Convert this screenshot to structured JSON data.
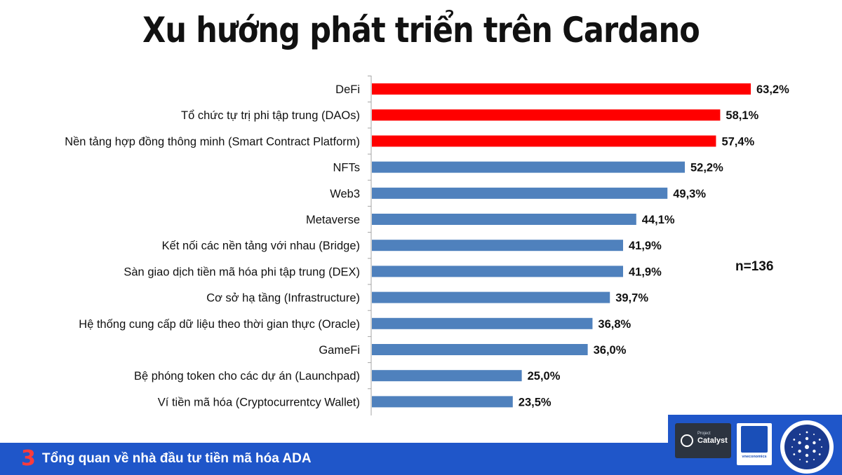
{
  "title": "Xu hướng phát triển trên Cardano",
  "n_label": "n=136",
  "footer": {
    "number": "3",
    "text": "Tổng quan về nhà đầu tư tiền mã hóa ADA"
  },
  "logos": {
    "catalyst_small": "Project",
    "catalyst": "Catalyst",
    "veconomics": "vneconomics"
  },
  "colors": {
    "highlight": "#ff0000",
    "default": "#4f81bd",
    "footer": "#1f56c9",
    "footer_number": "#ff3b3b"
  },
  "chart_data": {
    "type": "bar",
    "orientation": "horizontal",
    "title": "Xu hướng phát triển trên Cardano",
    "categories": [
      "DeFi",
      "Tổ chức tự trị phi tập trung (DAOs)",
      "Nền tảng hợp đồng thông minh (Smart Contract Platform)",
      "NFTs",
      "Web3",
      "Metaverse",
      "Kết nối các nền tảng với nhau (Bridge)",
      "Sàn giao dịch tiền mã hóa phi tập trung (DEX)",
      "Cơ sở hạ tầng (Infrastructure)",
      "Hệ thống cung cấp dữ liệu theo thời gian thực (Oracle)",
      "GameFi",
      "Bệ phóng token cho các dự án (Launchpad)",
      "Ví tiền mã hóa (Cryptocurrentcy Wallet)"
    ],
    "values": [
      63.2,
      58.1,
      57.4,
      52.2,
      49.3,
      44.1,
      41.9,
      41.9,
      39.7,
      36.8,
      36.0,
      25.0,
      23.5
    ],
    "value_labels": [
      "63,2%",
      "58,1%",
      "57,4%",
      "52,2%",
      "49,3%",
      "44,1%",
      "41,9%",
      "41,9%",
      "39,7%",
      "36,8%",
      "36,0%",
      "25,0%",
      "23,5%"
    ],
    "highlighted": [
      true,
      true,
      true,
      false,
      false,
      false,
      false,
      false,
      false,
      false,
      false,
      false,
      false
    ],
    "xlim": [
      0,
      63.2
    ],
    "grid": false
  }
}
